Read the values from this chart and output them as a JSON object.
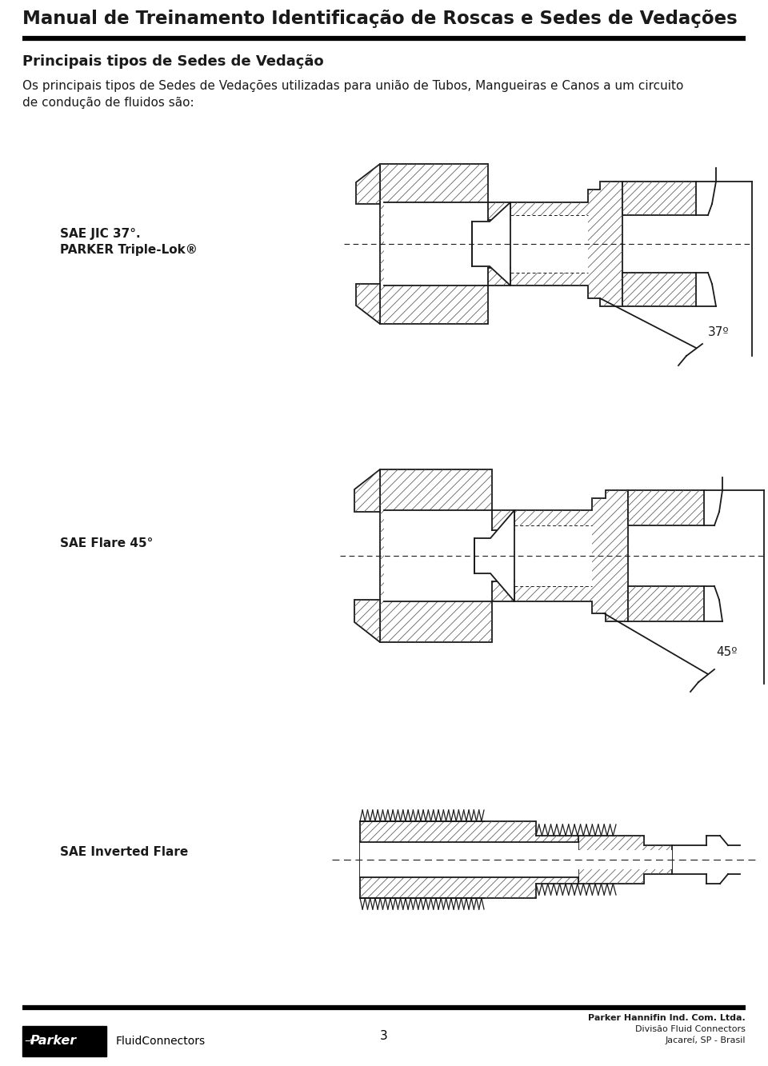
{
  "title": "Manual de Treinamento Identificação de Roscas e Sedes de Vedações",
  "section_title": "Principais tipos de Sedes de Vedação",
  "body_text": "Os principais tipos de Sedes de Vedações utilizadas para união de Tubos, Mangueiras e Canos a um circuito\nde condução de fluidos são:",
  "item1_label1": "SAE JIC 37°.",
  "item1_label2": "PARKER Triple-Lok®",
  "item1_angle": "37º",
  "item2_label": "SAE Flare 45°",
  "item2_angle": "45º",
  "item3_label": "SAE Inverted Flare",
  "footer_page": "3",
  "footer_company": "Parker Hannifin Ind. Com. Ltda.",
  "footer_division": "Divisão Fluid Connectors",
  "footer_city": "Jacareí, SP - Brasil",
  "bg_color": "#ffffff",
  "text_color": "#1a1a1a",
  "draw_color": "#1a1a1a",
  "hatch_color": "#555555"
}
